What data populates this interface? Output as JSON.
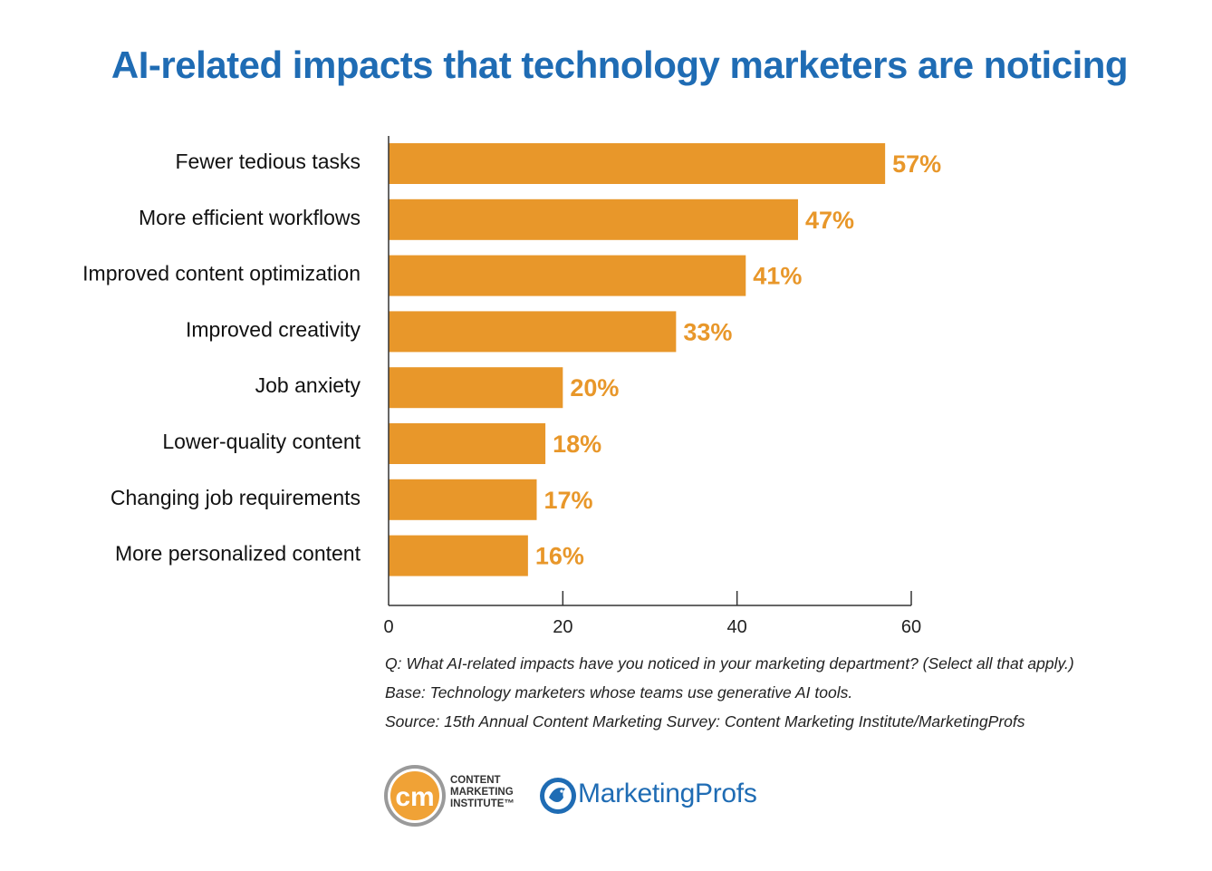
{
  "title": "AI-related impacts that technology marketers are noticing",
  "colors": {
    "title": "#1f6cb4",
    "bar": "#e8972a",
    "label_value": "#e8972a",
    "axis": "#333333"
  },
  "chart_data": {
    "type": "bar",
    "orientation": "horizontal",
    "categories": [
      "Fewer tedious tasks",
      "More efficient workflows",
      "Improved content optimization",
      "Improved creativity",
      "Job anxiety",
      "Lower-quality content",
      "Changing job requirements",
      "More personalized content"
    ],
    "values": [
      57,
      47,
      41,
      33,
      20,
      18,
      17,
      16
    ],
    "value_labels": [
      "57%",
      "47%",
      "41%",
      "33%",
      "20%",
      "18%",
      "17%",
      "16%"
    ],
    "xlim": [
      0,
      60
    ],
    "xticks": [
      0,
      20,
      40,
      60
    ],
    "grid": false,
    "legend": "none"
  },
  "notes": [
    "Q: What AI-related impacts have you noticed in your marketing department? (Select all that apply.)",
    "Base: Technology marketers whose teams use generative AI tools.",
    "Source: 15th Annual Content Marketing Survey: Content Marketing Institute/MarketingProfs"
  ],
  "logos": {
    "cmi": {
      "mark": "cm",
      "line1": "CONTENT",
      "line2": "MARKETING",
      "line3": "INSTITUTE™",
      "icon": "cmi-logo-icon"
    },
    "marketingprofs": {
      "name": "MarketingProfs",
      "icon": "marketingprofs-bird-icon"
    }
  }
}
